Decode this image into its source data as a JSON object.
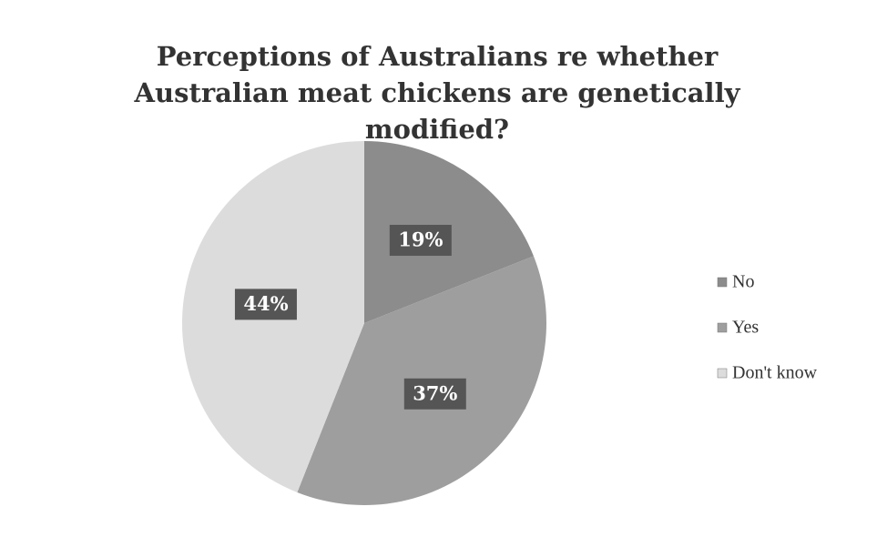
{
  "chart_data": {
    "type": "pie",
    "title": "Perceptions of Australians re whether Australian meat chickens are genetically modified?",
    "categories": [
      "No",
      "Yes",
      "Don't know"
    ],
    "values": [
      19,
      37,
      44
    ],
    "value_labels": [
      "19%",
      "37%",
      "44%"
    ],
    "colors": [
      "#8c8c8c",
      "#9e9e9e",
      "#dcdcdc"
    ],
    "legend": "right"
  }
}
